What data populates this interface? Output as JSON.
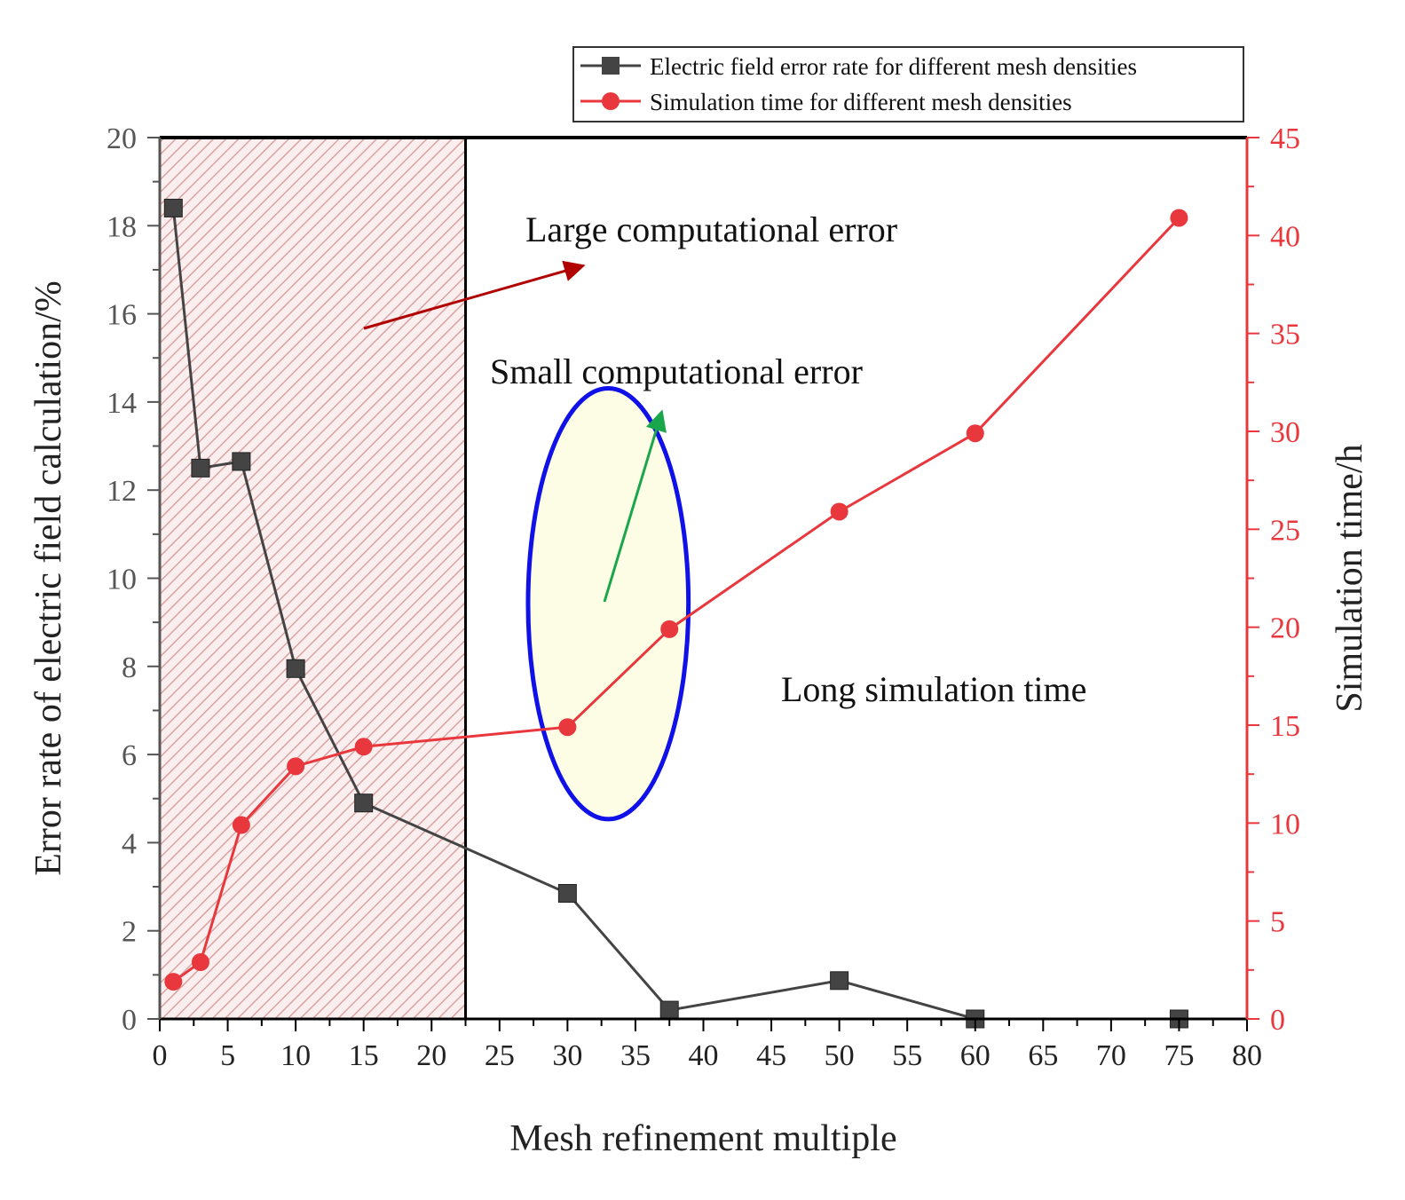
{
  "chart_data": {
    "type": "line",
    "xlabel": "Mesh refinement multiple",
    "ylabel": "Error rate of electric field calculation/%",
    "y2label": "Simulation time/h",
    "xlim": [
      0,
      80
    ],
    "ylim": [
      0,
      20
    ],
    "y2lim": [
      0,
      45
    ],
    "xticks": [
      0,
      5,
      10,
      15,
      20,
      25,
      30,
      35,
      40,
      45,
      50,
      55,
      60,
      65,
      70,
      75,
      80
    ],
    "yticks": [
      0,
      2,
      4,
      6,
      8,
      10,
      12,
      14,
      16,
      18,
      20
    ],
    "y2ticks": [
      0,
      5,
      10,
      15,
      20,
      25,
      30,
      35,
      40,
      45
    ],
    "grid": false,
    "legend_position": "top-right",
    "series": [
      {
        "name": "Electric field error rate for different mesh densities",
        "axis": "left",
        "color": "#444444",
        "marker": "square",
        "x": [
          1,
          3,
          6,
          10,
          15,
          30,
          37.5,
          50,
          60,
          75
        ],
        "values": [
          18.4,
          12.5,
          12.65,
          7.95,
          4.9,
          2.85,
          0.2,
          0.87,
          0.0,
          0.0
        ]
      },
      {
        "name": "Simulation time for different mesh densities",
        "axis": "right",
        "color": "#e8383d",
        "marker": "circle",
        "x": [
          1,
          3,
          6,
          10,
          15,
          30,
          37.5,
          50,
          60,
          75
        ],
        "values": [
          1.9,
          2.9,
          9.9,
          12.9,
          13.9,
          14.9,
          19.9,
          25.9,
          29.9,
          40.9
        ]
      }
    ],
    "annotations": [
      "Large computational error",
      "Small computational error",
      "Long simulation time"
    ],
    "hatched_region_x": [
      0,
      22.5
    ],
    "ellipse_center": [
      33,
      21.2
    ],
    "ellipse_radius": [
      5.9,
      11.0
    ]
  },
  "colors": {
    "left_axis": "#555555",
    "right_axis": "#e8383d",
    "hatch": "#d9a3a3",
    "ellipse_stroke": "#1010e8",
    "ellipse_fill": "#fdfde6",
    "arrow_large": "#b00000",
    "arrow_small": "#1aa64a"
  }
}
